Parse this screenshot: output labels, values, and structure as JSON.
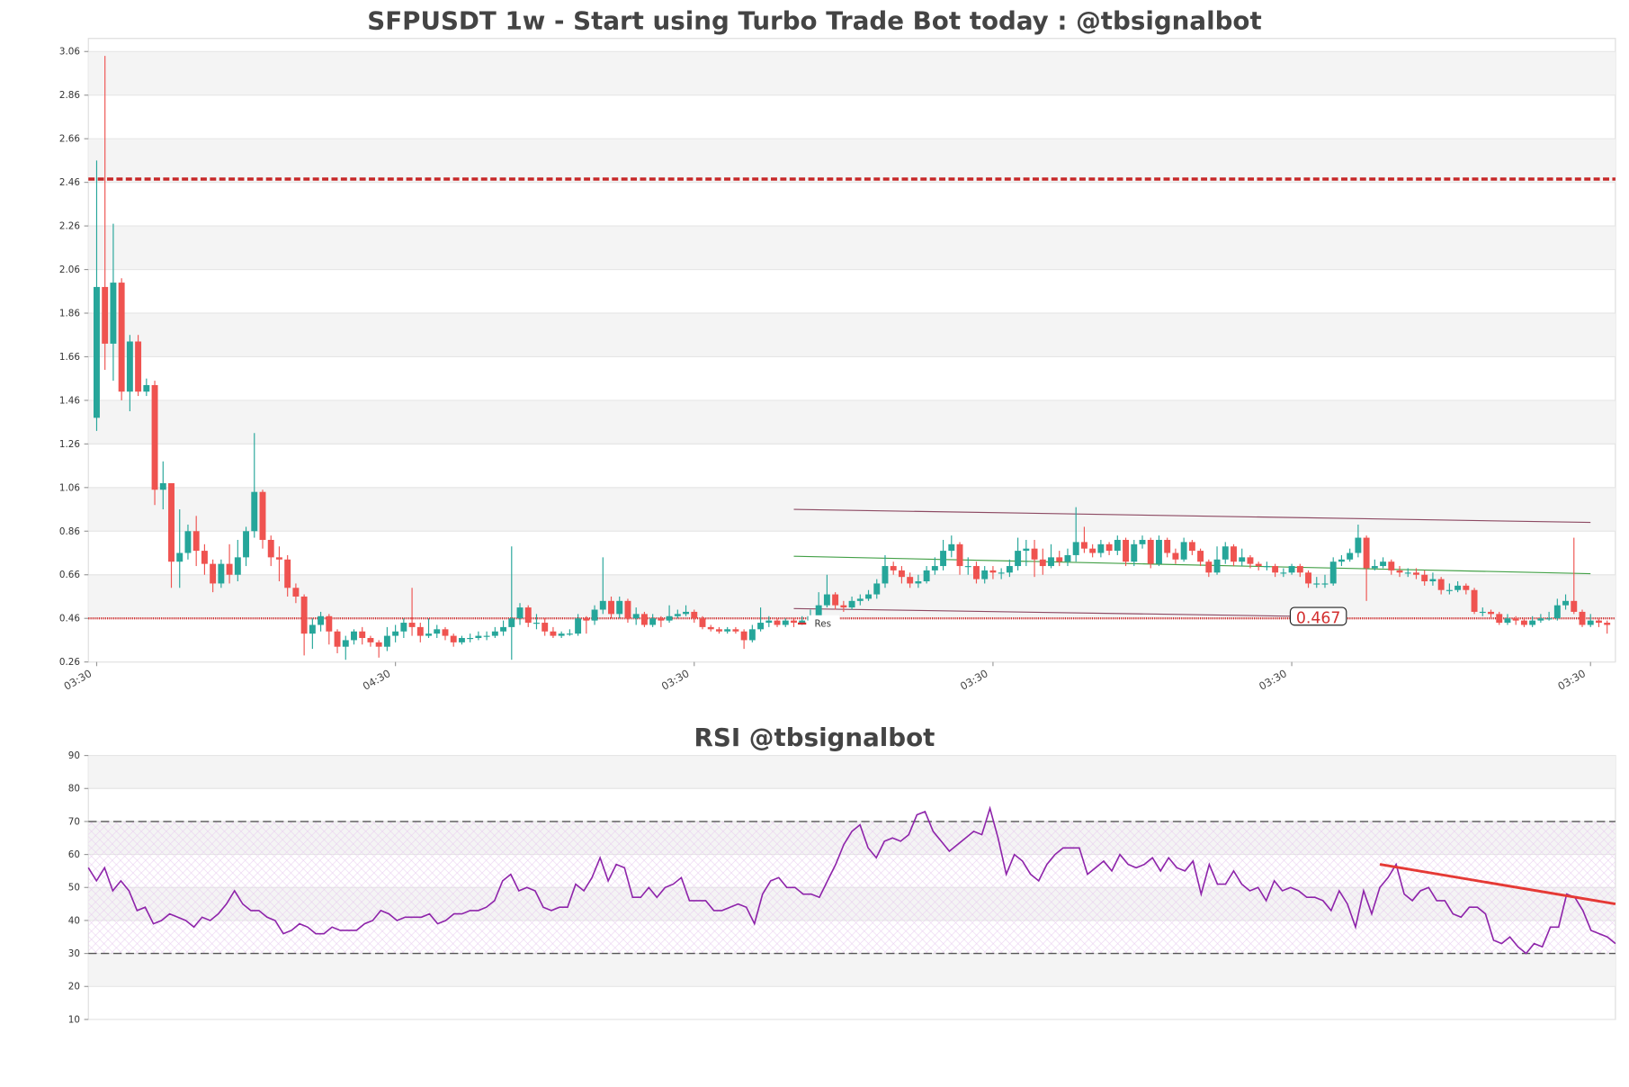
{
  "chart_data": [
    {
      "type": "candlestick",
      "title": "SFPUSDT 1w - Start using Turbo Trade Bot today : @tbsignalbot",
      "open": [
        1.38,
        1.98,
        1.72,
        2.0,
        1.5,
        1.73,
        1.5,
        1.53,
        1.05,
        1.08,
        0.72,
        0.76,
        0.86,
        0.77,
        0.71,
        0.62,
        0.71,
        0.66,
        0.74,
        0.86,
        1.04,
        0.82,
        0.74,
        0.73,
        0.6,
        0.56,
        0.39,
        0.43,
        0.47,
        0.4,
        0.33,
        0.36,
        0.4,
        0.37,
        0.35,
        0.33,
        0.38,
        0.4,
        0.44,
        0.42,
        0.38,
        0.39,
        0.41,
        0.38,
        0.35,
        0.37,
        0.37,
        0.38,
        0.38,
        0.4,
        0.42,
        0.46,
        0.51,
        0.44,
        0.44,
        0.4,
        0.38,
        0.39,
        0.39,
        0.46,
        0.45,
        0.5,
        0.54,
        0.48,
        0.54,
        0.46,
        0.48,
        0.43,
        0.46,
        0.45,
        0.47,
        0.48,
        0.49,
        0.46,
        0.42,
        0.41,
        0.4,
        0.41,
        0.4,
        0.36,
        0.41,
        0.44,
        0.45,
        0.43,
        0.45,
        0.44,
        0.45,
        0.47,
        0.52,
        0.57,
        0.52,
        0.51,
        0.54,
        0.55,
        0.57,
        0.62,
        0.7,
        0.68,
        0.65,
        0.62,
        0.63,
        0.68,
        0.7,
        0.77,
        0.8,
        0.7,
        0.7,
        0.64,
        0.68,
        0.67,
        0.67,
        0.7,
        0.77,
        0.78,
        0.73,
        0.7,
        0.74,
        0.72,
        0.75,
        0.81,
        0.78,
        0.76,
        0.8,
        0.77,
        0.82,
        0.72,
        0.8,
        0.82,
        0.71,
        0.82,
        0.76,
        0.73,
        0.81,
        0.77,
        0.72,
        0.67,
        0.73,
        0.79,
        0.72,
        0.74,
        0.71,
        0.7,
        0.7,
        0.67,
        0.67,
        0.7,
        0.67,
        0.62,
        0.62,
        0.62,
        0.72,
        0.73,
        0.76,
        0.83,
        0.69,
        0.7,
        0.72,
        0.68,
        0.67,
        0.67,
        0.66,
        0.63,
        0.64,
        0.59,
        0.59,
        0.61,
        0.59,
        0.49,
        0.49,
        0.48,
        0.44,
        0.46,
        0.45,
        0.43,
        0.45,
        0.46,
        0.46,
        0.52,
        0.54,
        0.49,
        0.43,
        0.45,
        0.44
      ],
      "high": [
        2.56,
        3.04,
        2.27,
        2.02,
        1.76,
        1.76,
        1.56,
        1.55,
        1.18,
        1.08,
        0.96,
        0.89,
        0.93,
        0.8,
        0.73,
        0.73,
        0.8,
        0.82,
        0.88,
        1.31,
        1.05,
        0.84,
        0.79,
        0.75,
        0.62,
        0.57,
        0.46,
        0.49,
        0.48,
        0.41,
        0.38,
        0.41,
        0.42,
        0.38,
        0.36,
        0.42,
        0.43,
        0.46,
        0.6,
        0.44,
        0.46,
        0.43,
        0.42,
        0.39,
        0.38,
        0.39,
        0.4,
        0.4,
        0.42,
        0.45,
        0.79,
        0.53,
        0.52,
        0.48,
        0.46,
        0.42,
        0.4,
        0.41,
        0.48,
        0.47,
        0.52,
        0.74,
        0.56,
        0.56,
        0.55,
        0.51,
        0.49,
        0.48,
        0.47,
        0.52,
        0.5,
        0.52,
        0.5,
        0.47,
        0.43,
        0.42,
        0.42,
        0.42,
        0.41,
        0.43,
        0.51,
        0.47,
        0.46,
        0.46,
        0.46,
        0.47,
        0.5,
        0.58,
        0.66,
        0.58,
        0.54,
        0.56,
        0.57,
        0.59,
        0.64,
        0.75,
        0.72,
        0.7,
        0.67,
        0.66,
        0.7,
        0.74,
        0.82,
        0.84,
        0.81,
        0.74,
        0.72,
        0.7,
        0.7,
        0.69,
        0.73,
        0.83,
        0.82,
        0.82,
        0.78,
        0.8,
        0.77,
        0.78,
        0.97,
        0.88,
        0.8,
        0.82,
        0.81,
        0.84,
        0.83,
        0.82,
        0.84,
        0.83,
        0.84,
        0.83,
        0.78,
        0.83,
        0.82,
        0.78,
        0.73,
        0.79,
        0.81,
        0.8,
        0.78,
        0.75,
        0.72,
        0.72,
        0.71,
        0.69,
        0.71,
        0.71,
        0.68,
        0.65,
        0.66,
        0.74,
        0.75,
        0.78,
        0.89,
        0.84,
        0.73,
        0.74,
        0.73,
        0.7,
        0.69,
        0.69,
        0.68,
        0.67,
        0.65,
        0.62,
        0.63,
        0.62,
        0.6,
        0.51,
        0.5,
        0.49,
        0.48,
        0.47,
        0.46,
        0.47,
        0.48,
        0.49,
        0.55,
        0.57,
        0.83,
        0.5,
        0.48,
        0.46,
        0.45
      ],
      "low": [
        1.32,
        1.6,
        1.55,
        1.46,
        1.41,
        1.48,
        1.48,
        0.98,
        0.96,
        0.6,
        0.6,
        0.73,
        0.7,
        0.66,
        0.58,
        0.6,
        0.62,
        0.63,
        0.7,
        0.83,
        0.78,
        0.7,
        0.63,
        0.56,
        0.53,
        0.29,
        0.32,
        0.4,
        0.34,
        0.3,
        0.27,
        0.34,
        0.34,
        0.33,
        0.28,
        0.31,
        0.35,
        0.37,
        0.38,
        0.35,
        0.37,
        0.37,
        0.36,
        0.33,
        0.34,
        0.35,
        0.36,
        0.36,
        0.37,
        0.38,
        0.27,
        0.43,
        0.42,
        0.41,
        0.38,
        0.37,
        0.37,
        0.38,
        0.38,
        0.39,
        0.43,
        0.48,
        0.46,
        0.46,
        0.44,
        0.43,
        0.42,
        0.42,
        0.42,
        0.44,
        0.46,
        0.47,
        0.44,
        0.41,
        0.4,
        0.39,
        0.39,
        0.39,
        0.32,
        0.35,
        0.4,
        0.42,
        0.42,
        0.42,
        0.42,
        0.43,
        0.44,
        0.46,
        0.51,
        0.5,
        0.49,
        0.5,
        0.52,
        0.54,
        0.55,
        0.6,
        0.66,
        0.62,
        0.6,
        0.6,
        0.62,
        0.66,
        0.68,
        0.74,
        0.66,
        0.66,
        0.62,
        0.62,
        0.64,
        0.64,
        0.65,
        0.68,
        0.7,
        0.65,
        0.66,
        0.69,
        0.7,
        0.7,
        0.72,
        0.76,
        0.74,
        0.74,
        0.75,
        0.75,
        0.7,
        0.7,
        0.78,
        0.69,
        0.7,
        0.74,
        0.71,
        0.72,
        0.75,
        0.7,
        0.65,
        0.66,
        0.71,
        0.7,
        0.7,
        0.69,
        0.68,
        0.68,
        0.65,
        0.65,
        0.66,
        0.65,
        0.6,
        0.6,
        0.6,
        0.61,
        0.7,
        0.72,
        0.74,
        0.54,
        0.68,
        0.69,
        0.66,
        0.65,
        0.65,
        0.64,
        0.61,
        0.61,
        0.57,
        0.57,
        0.58,
        0.57,
        0.48,
        0.47,
        0.46,
        0.43,
        0.43,
        0.43,
        0.42,
        0.42,
        0.44,
        0.45,
        0.45,
        0.5,
        0.48,
        0.42,
        0.42,
        0.42,
        0.39
      ],
      "close": [
        1.98,
        1.72,
        2.0,
        1.5,
        1.73,
        1.5,
        1.53,
        1.05,
        1.08,
        0.72,
        0.76,
        0.86,
        0.77,
        0.71,
        0.62,
        0.71,
        0.66,
        0.74,
        0.86,
        1.04,
        0.82,
        0.74,
        0.73,
        0.6,
        0.56,
        0.39,
        0.43,
        0.47,
        0.4,
        0.33,
        0.36,
        0.4,
        0.37,
        0.35,
        0.33,
        0.38,
        0.4,
        0.44,
        0.42,
        0.38,
        0.39,
        0.41,
        0.38,
        0.35,
        0.37,
        0.37,
        0.38,
        0.38,
        0.4,
        0.42,
        0.46,
        0.51,
        0.44,
        0.44,
        0.4,
        0.38,
        0.39,
        0.39,
        0.46,
        0.45,
        0.5,
        0.54,
        0.48,
        0.54,
        0.46,
        0.48,
        0.43,
        0.46,
        0.45,
        0.47,
        0.48,
        0.49,
        0.46,
        0.42,
        0.41,
        0.4,
        0.41,
        0.4,
        0.36,
        0.41,
        0.44,
        0.45,
        0.43,
        0.45,
        0.44,
        0.45,
        0.47,
        0.52,
        0.57,
        0.52,
        0.51,
        0.54,
        0.55,
        0.57,
        0.62,
        0.7,
        0.68,
        0.65,
        0.62,
        0.63,
        0.68,
        0.7,
        0.77,
        0.8,
        0.7,
        0.7,
        0.64,
        0.68,
        0.67,
        0.67,
        0.7,
        0.77,
        0.78,
        0.73,
        0.7,
        0.74,
        0.72,
        0.75,
        0.81,
        0.78,
        0.76,
        0.8,
        0.77,
        0.82,
        0.72,
        0.8,
        0.82,
        0.71,
        0.82,
        0.76,
        0.73,
        0.81,
        0.77,
        0.72,
        0.67,
        0.73,
        0.79,
        0.72,
        0.74,
        0.71,
        0.7,
        0.7,
        0.67,
        0.67,
        0.7,
        0.67,
        0.62,
        0.62,
        0.62,
        0.72,
        0.73,
        0.76,
        0.83,
        0.69,
        0.7,
        0.72,
        0.68,
        0.67,
        0.67,
        0.66,
        0.63,
        0.64,
        0.59,
        0.59,
        0.61,
        0.59,
        0.49,
        0.49,
        0.48,
        0.44,
        0.46,
        0.45,
        0.43,
        0.45,
        0.46,
        0.46,
        0.52,
        0.54,
        0.49,
        0.43,
        0.45,
        0.44,
        0.43
      ],
      "up_color": "#26a69a",
      "down_color": "#ef5350",
      "xlim": [
        -1,
        183
      ],
      "xticks": [
        {
          "value": 0,
          "label": "03:30"
        },
        {
          "value": 36,
          "label": "04:30"
        },
        {
          "value": 72,
          "label": "03:30"
        },
        {
          "value": 108,
          "label": "03:30"
        },
        {
          "value": 144,
          "label": "03:30"
        },
        {
          "value": 180,
          "label": "03:30"
        }
      ],
      "ylim": [
        0.26,
        3.12
      ],
      "yticks": [
        0.26,
        0.46,
        0.66,
        0.86,
        1.06,
        1.26,
        1.46,
        1.66,
        1.86,
        2.06,
        2.26,
        2.46,
        2.66,
        2.86,
        3.06
      ],
      "hlines": [
        {
          "y": 2.475,
          "color": "#c62828",
          "style": "dashed"
        },
        {
          "y": 0.46,
          "color": "#d32f2f",
          "style": "solid"
        }
      ],
      "trendlines": [
        {
          "x": [
            84,
            180
          ],
          "y": [
            0.96,
            0.9
          ],
          "color": "#8d4a63"
        },
        {
          "x": [
            84,
            180
          ],
          "y": [
            0.745,
            0.665
          ],
          "color": "#43a047"
        },
        {
          "x": [
            84,
            144
          ],
          "y": [
            0.505,
            0.47
          ],
          "color": "#8d4a63"
        }
      ],
      "level_label": "Res",
      "price_label": {
        "value": 0.467,
        "label": "0.467"
      }
    },
    {
      "type": "line",
      "title": "RSI @tbsignalbot",
      "color": "#8e24aa",
      "values": [
        56,
        52,
        56,
        49,
        52,
        49,
        43,
        44,
        39,
        40,
        42,
        41,
        40,
        38,
        41,
        40,
        42,
        45,
        49,
        45,
        43,
        43,
        41,
        40,
        36,
        37,
        39,
        38,
        36,
        36,
        38,
        37,
        37,
        37,
        39,
        40,
        43,
        42,
        40,
        41,
        41,
        41,
        42,
        39,
        40,
        42,
        42,
        43,
        43,
        44,
        46,
        52,
        54,
        49,
        50,
        49,
        44,
        43,
        44,
        44,
        51,
        49,
        53,
        59,
        52,
        57,
        56,
        47,
        47,
        50,
        47,
        50,
        51,
        53,
        46,
        46,
        46,
        43,
        43,
        44,
        45,
        44,
        39,
        48,
        52,
        53,
        50,
        50,
        48,
        48,
        47,
        52,
        57,
        63,
        67,
        69,
        62,
        59,
        64,
        65,
        64,
        66,
        72,
        73,
        67,
        64,
        61,
        63,
        65,
        67,
        66,
        74,
        65,
        54,
        60,
        58,
        54,
        52,
        57,
        60,
        62,
        62,
        62,
        54,
        56,
        58,
        55,
        60,
        57,
        56,
        57,
        59,
        55,
        59,
        56,
        55,
        58,
        48,
        57,
        51,
        51,
        55,
        51,
        49,
        50,
        46,
        52,
        49,
        50,
        49,
        47,
        47,
        46,
        43,
        49,
        45,
        38,
        49,
        42,
        50,
        53,
        57,
        48,
        46,
        49,
        50,
        46,
        46,
        42,
        41,
        44,
        44,
        42,
        34,
        33,
        35,
        32,
        30,
        33,
        32,
        38,
        38,
        48,
        47,
        43,
        37,
        36,
        35,
        33
      ],
      "xlim": [
        0,
        188
      ],
      "ylim": [
        10,
        90
      ],
      "yticks": [
        10,
        20,
        30,
        40,
        50,
        60,
        70,
        80,
        90
      ],
      "hlines": [
        {
          "y": 30,
          "color": "#555"
        },
        {
          "y": 70,
          "color": "#555"
        }
      ],
      "band": [
        30,
        70
      ],
      "trendline": {
        "x": [
          159,
          188
        ],
        "y": [
          57,
          45
        ],
        "color": "#e53935"
      }
    }
  ]
}
